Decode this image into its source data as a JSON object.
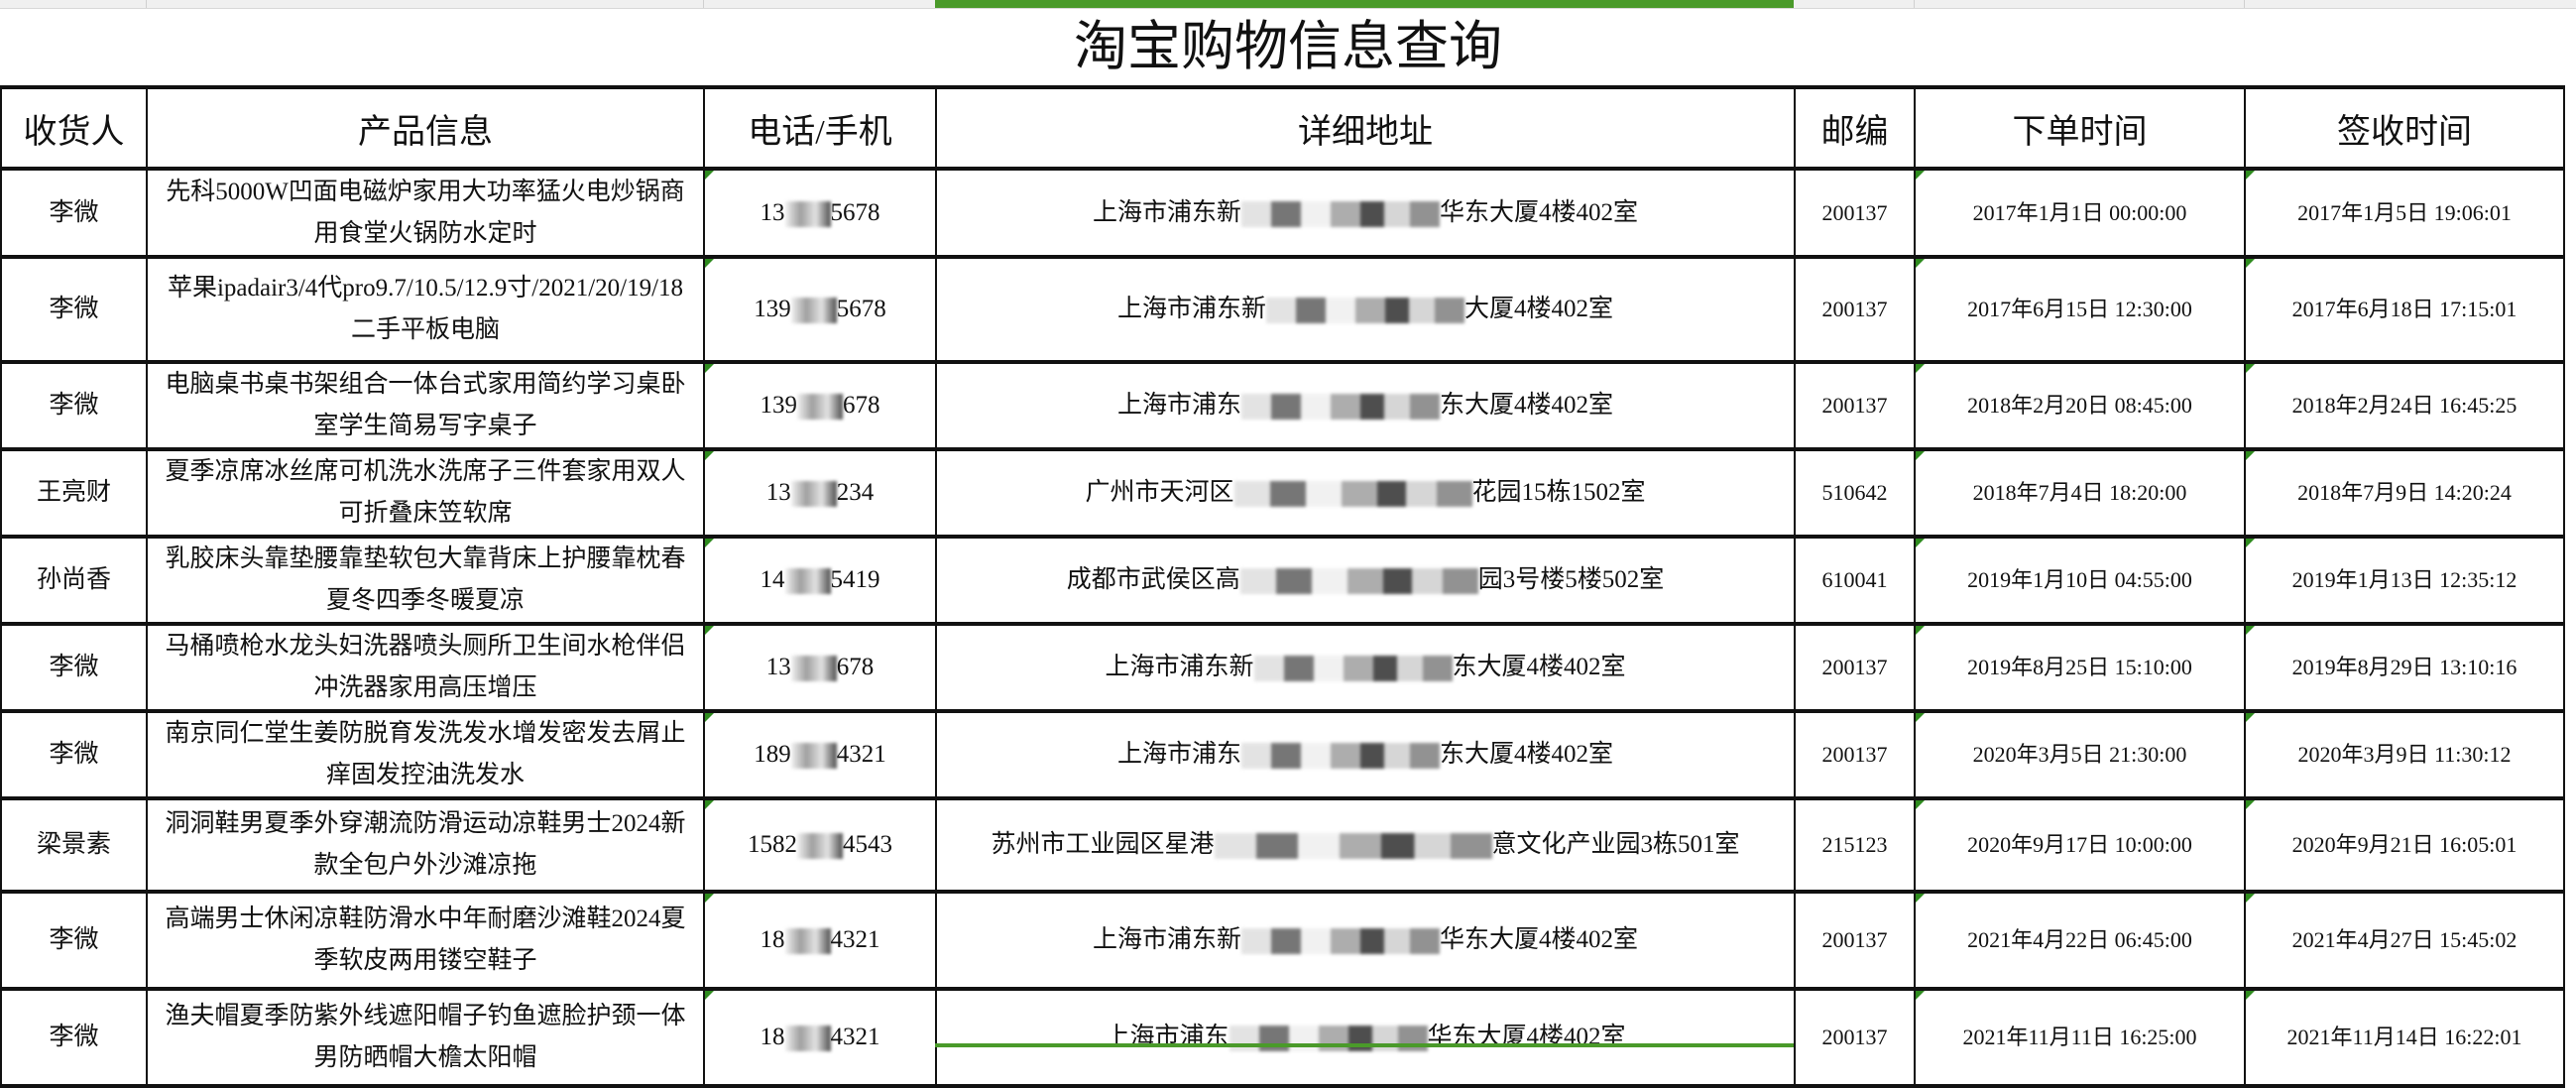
{
  "title": "淘宝购物信息查询",
  "colors": {
    "selection": "#4a9a2a",
    "text_flag": "#2e8b1e",
    "border": "#111111"
  },
  "columns": [
    "收货人",
    "产品信息",
    "电话/手机",
    "详细地址",
    "邮编",
    "下单时间",
    "签收时间"
  ],
  "rows": [
    {
      "name": "李微",
      "product": "先科5000W凹面电磁炉家用大功率猛火电炒锅商用食堂火锅防水定时",
      "phone_start": "13",
      "phone_end": "5678",
      "addr_start": "上海市浦东新",
      "addr_end": "华东大厦4楼402室",
      "zip": "200137",
      "order_time": "2017年1月1日 00:00:00",
      "sign_time": "2017年1月5日 19:06:01"
    },
    {
      "name": "李微",
      "product": "苹果ipadair3/4代pro9.7/10.5/12.9寸/2021/20/19/18二手平板电脑",
      "phone_start": "139",
      "phone_end": "5678",
      "addr_start": "上海市浦东新",
      "addr_end": "大厦4楼402室",
      "zip": "200137",
      "order_time": "2017年6月15日 12:30:00",
      "sign_time": "2017年6月18日 17:15:01"
    },
    {
      "name": "李微",
      "product": "电脑桌书桌书架组合一体台式家用简约学习桌卧室学生简易写字桌子",
      "phone_start": "139",
      "phone_end": "678",
      "addr_start": "上海市浦东",
      "addr_end": "东大厦4楼402室",
      "zip": "200137",
      "order_time": "2018年2月20日 08:45:00",
      "sign_time": "2018年2月24日 16:45:25"
    },
    {
      "name": "王亮财",
      "product": "夏季凉席冰丝席可机洗水洗席子三件套家用双人可折叠床笠软席",
      "phone_start": "13",
      "phone_end": "234",
      "addr_start": "广州市天河区",
      "addr_end": "花园15栋1502室",
      "zip": "510642",
      "order_time": "2018年7月4日 18:20:00",
      "sign_time": "2018年7月9日 14:20:24"
    },
    {
      "name": "孙尚香",
      "product": "乳胶床头靠垫腰靠垫软包大靠背床上护腰靠枕春夏冬四季冬暖夏凉",
      "phone_start": "14",
      "phone_end": "5419",
      "addr_start": "成都市武侯区高",
      "addr_end": "园3号楼5楼502室",
      "zip": "610041",
      "order_time": "2019年1月10日 04:55:00",
      "sign_time": "2019年1月13日 12:35:12"
    },
    {
      "name": "李微",
      "product": "马桶喷枪水龙头妇洗器喷头厕所卫生间水枪伴侣冲洗器家用高压增压",
      "phone_start": "13",
      "phone_end": "678",
      "addr_start": "上海市浦东新",
      "addr_end": "东大厦4楼402室",
      "zip": "200137",
      "order_time": "2019年8月25日 15:10:00",
      "sign_time": "2019年8月29日 13:10:16"
    },
    {
      "name": "李微",
      "product": "南京同仁堂生姜防脱育发洗发水增发密发去屑止痒固发控油洗发水",
      "phone_start": "189",
      "phone_end": "4321",
      "addr_start": "上海市浦东",
      "addr_end": "东大厦4楼402室",
      "zip": "200137",
      "order_time": "2020年3月5日 21:30:00",
      "sign_time": "2020年3月9日 11:30:12"
    },
    {
      "name": "梁景素",
      "product": "洞洞鞋男夏季外穿潮流防滑运动凉鞋男士2024新款全包户外沙滩凉拖",
      "phone_start": "1582",
      "phone_end": "4543",
      "addr_start": "苏州市工业园区星港",
      "addr_end": "意文化产业园3栋501室",
      "zip": "215123",
      "order_time": "2020年9月17日 10:00:00",
      "sign_time": "2020年9月21日 16:05:01"
    },
    {
      "name": "李微",
      "product": "高端男士休闲凉鞋防滑水中年耐磨沙滩鞋2024夏季软皮两用镂空鞋子",
      "phone_start": "18",
      "phone_end": "4321",
      "addr_start": "上海市浦东新",
      "addr_end": "华东大厦4楼402室",
      "zip": "200137",
      "order_time": "2021年4月22日 06:45:00",
      "sign_time": "2021年4月27日 15:45:02"
    },
    {
      "name": "李微",
      "product": "渔夫帽夏季防紫外线遮阳帽子钓鱼遮脸护颈一体男防晒帽大檐太阳帽",
      "phone_start": "18",
      "phone_end": "4321",
      "addr_start": "上海市浦东",
      "addr_end": "华东大厦4楼402室",
      "zip": "200137",
      "order_time": "2021年11月11日 16:25:00",
      "sign_time": "2021年11月14日 16:22:01"
    }
  ]
}
